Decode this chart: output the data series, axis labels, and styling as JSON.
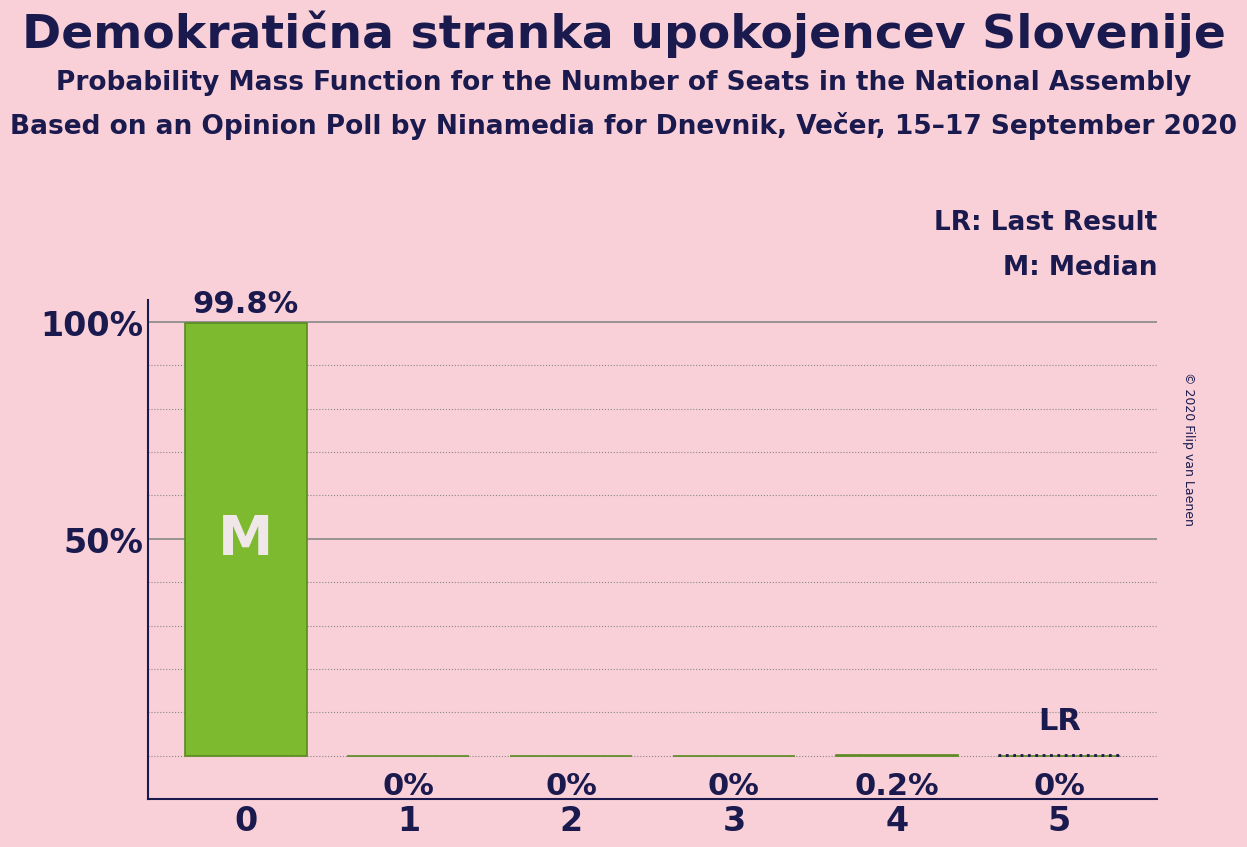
{
  "title": "Demokratična stranka upokojencev Slovenije",
  "subtitle1": "Probability Mass Function for the Number of Seats in the National Assembly",
  "subtitle2": "Based on an Opinion Poll by Ninamedia for Dnevnik, Večer, 15–17 September 2020",
  "copyright": "© 2020 Filip van Laenen",
  "background_color": "#f9d0d8",
  "bar_color": "#7dba2f",
  "bar_edge_color": "#5a8a20",
  "categories": [
    0,
    1,
    2,
    3,
    4,
    5
  ],
  "values": [
    99.8,
    0.0,
    0.0,
    0.0,
    0.2,
    0.0
  ],
  "last_result_values": [
    0.0,
    0.0,
    0.0,
    0.0,
    0.0,
    0.2
  ],
  "lr_value_at": 5,
  "median_at": 0,
  "bar_labels": [
    "99.8%",
    "0%",
    "0%",
    "0%",
    "0.2%",
    "0%"
  ],
  "lr_label": "LR: Last Result",
  "m_label": "M: Median",
  "title_fontsize": 34,
  "subtitle_fontsize": 19,
  "axis_tick_fontsize": 24,
  "bar_label_fontsize": 22,
  "legend_fontsize": 19,
  "m_fontsize": 40,
  "lr_annotation_fontsize": 22,
  "copyright_fontsize": 9,
  "text_color": "#1a1a4e",
  "grid_color": "#888888",
  "bar_width": 0.75,
  "ylim_top": 105,
  "ylim_bottom": -10,
  "xlim_left": -0.6,
  "xlim_right": 5.6
}
